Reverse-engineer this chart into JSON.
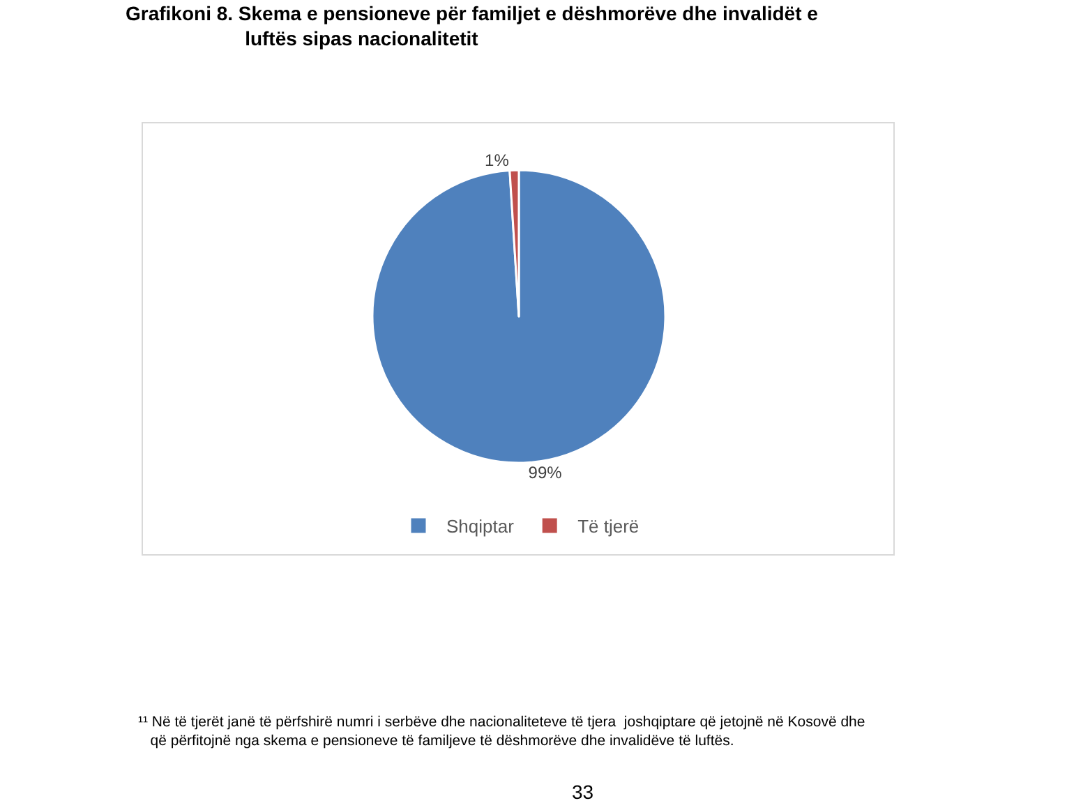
{
  "chart_data": {
    "type": "pie",
    "title": "Grafikoni 8. Skema e pensioneve për familjet e dëshmorëve dhe invalidët e luftës sipas nacionalitetit",
    "categories": [
      "Shqiptar",
      "Të tjerë"
    ],
    "values": [
      99,
      1
    ],
    "colors": [
      "#4f81bd",
      "#c0504d"
    ],
    "value_labels": [
      "99%",
      "1%"
    ],
    "legend": "bottom",
    "annotations": [
      "¹¹ Në të tjerët janë të përfshirë numri i serbëve dhe nacionaliteteve të tjera  joshqiptare që jetojnë në Kosovë dhe që përfitojnë nga skema e pensioneve të familjeve të dëshmorëve dhe invalidëve të luftës.",
      "33"
    ]
  }
}
